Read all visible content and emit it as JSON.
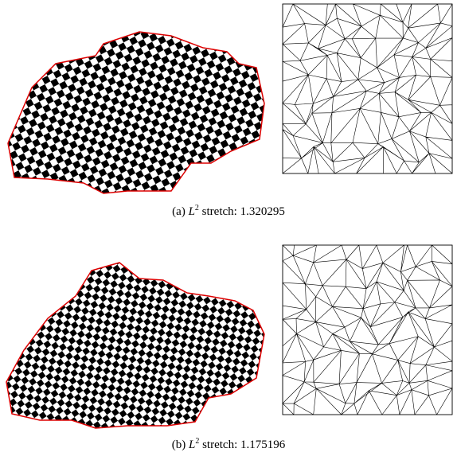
{
  "figures": [
    {
      "caption": {
        "label": "(a)",
        "symbol": "L",
        "superscript": "2",
        "text": "stretch: 1.320295"
      }
    },
    {
      "caption": {
        "label": "(b)",
        "symbol": "L",
        "superscript": "2",
        "text": "stretch: 1.175196"
      }
    }
  ]
}
